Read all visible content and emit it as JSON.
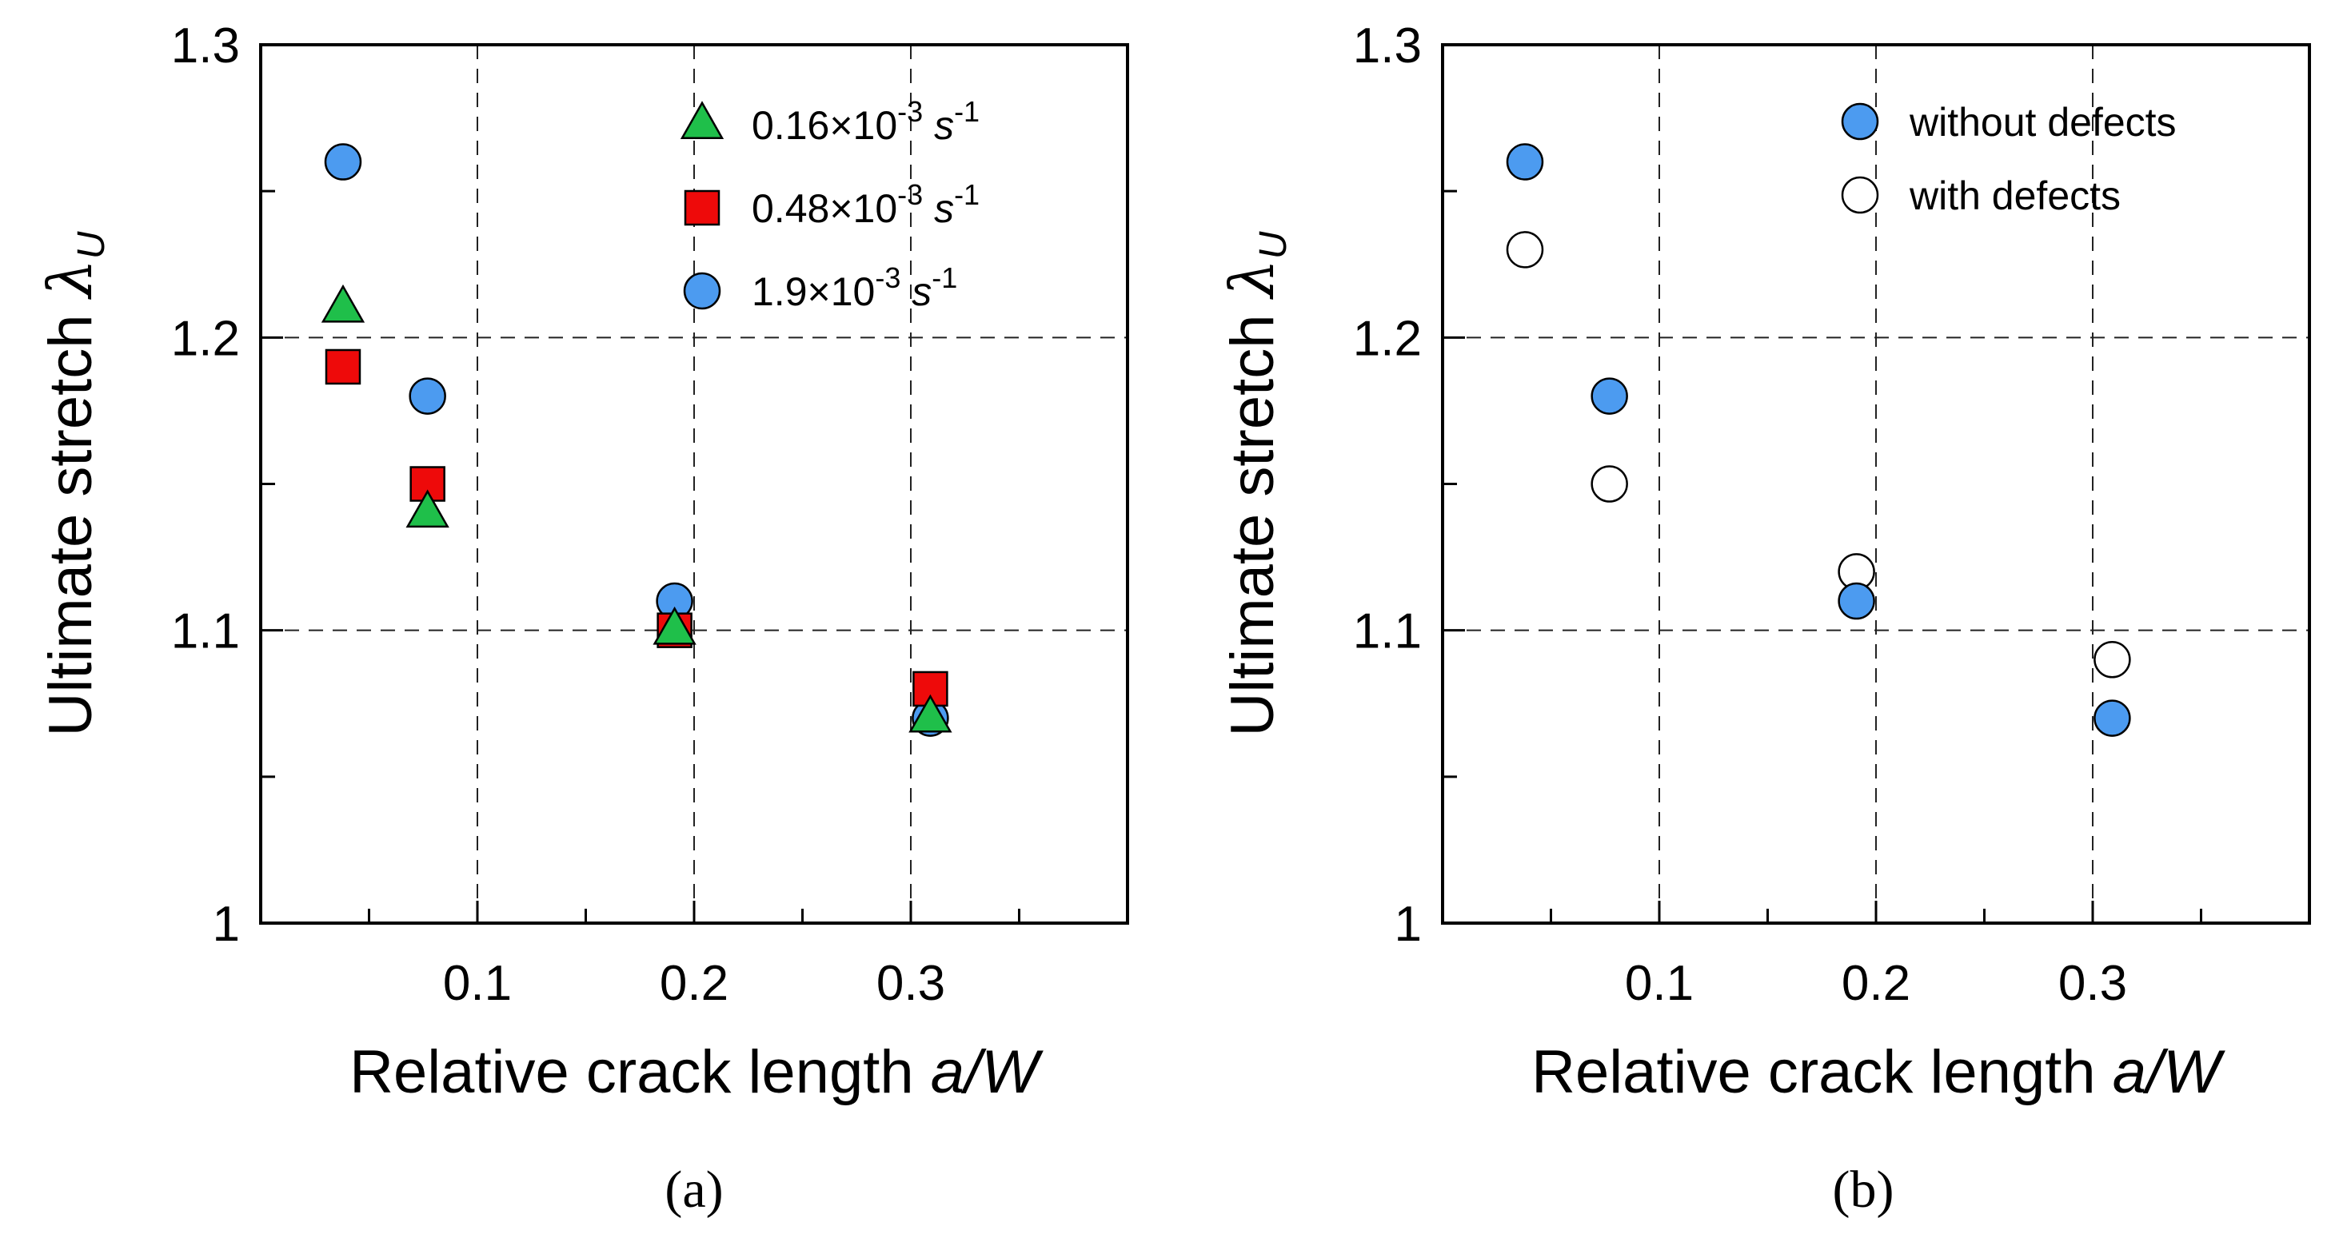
{
  "chart_data": [
    {
      "type": "scatter",
      "panel": "(a)",
      "xlabel": "Relative crack length",
      "xlabel_var": "a/W",
      "ylabel": "Ultimate stretch",
      "ylabel_sym": "λ",
      "ylabel_sub": "U",
      "xlim": [
        0,
        0.4
      ],
      "ylim": [
        1.0,
        1.3
      ],
      "xticks": [
        0.1,
        0.2,
        0.3
      ],
      "xtick_labels": [
        "0.1",
        "0.2",
        "0.3"
      ],
      "yticks": [
        1.0,
        1.1,
        1.2,
        1.3
      ],
      "ytick_labels": [
        "1",
        "1.1",
        "1.2",
        "1.3"
      ],
      "grid": true,
      "legend_position": "top-right",
      "series": [
        {
          "name": "0.16×10-3 s-1",
          "label_main": "0.16×10",
          "label_exp": "-3",
          "label_unit": "s",
          "label_unit_exp": "-1",
          "marker": "triangle",
          "color": "#1fbf4a",
          "x": [
            0.038,
            0.077,
            0.191,
            0.309
          ],
          "y": [
            1.21,
            1.14,
            1.1,
            1.07
          ]
        },
        {
          "name": "0.48×10-3 s-1",
          "label_main": "0.48×10",
          "label_exp": "-3",
          "label_unit": "s",
          "label_unit_exp": "-1",
          "marker": "square",
          "color": "#ee0a0a",
          "x": [
            0.038,
            0.077,
            0.191,
            0.309
          ],
          "y": [
            1.19,
            1.15,
            1.1,
            1.08
          ]
        },
        {
          "name": "1.9×10-3 s-1",
          "label_main": "1.9×10",
          "label_exp": "-3",
          "label_unit": "s",
          "label_unit_exp": "-1",
          "marker": "circle",
          "color": "#4c9bf0",
          "x": [
            0.038,
            0.077,
            0.191,
            0.309
          ],
          "y": [
            1.26,
            1.18,
            1.11,
            1.07
          ]
        }
      ]
    },
    {
      "type": "scatter",
      "panel": "(b)",
      "xlabel": "Relative crack length",
      "xlabel_var": "a/W",
      "ylabel": "Ultimate stretch",
      "ylabel_sym": "λ",
      "ylabel_sub": "U",
      "xlim": [
        0,
        0.4
      ],
      "ylim": [
        1.0,
        1.3
      ],
      "xticks": [
        0.1,
        0.2,
        0.3
      ],
      "xtick_labels": [
        "0.1",
        "0.2",
        "0.3"
      ],
      "yticks": [
        1.0,
        1.1,
        1.2,
        1.3
      ],
      "ytick_labels": [
        "1",
        "1.1",
        "1.2",
        "1.3"
      ],
      "grid": true,
      "legend_position": "top-right",
      "series": [
        {
          "name": "without defects",
          "label_main": "without defects",
          "marker": "circle",
          "color": "#4c9bf0",
          "x": [
            0.038,
            0.077,
            0.191,
            0.309
          ],
          "y": [
            1.26,
            1.18,
            1.11,
            1.07
          ]
        },
        {
          "name": "with defects",
          "label_main": "with defects",
          "marker": "circle",
          "color": "#ffffff",
          "x": [
            0.038,
            0.077,
            0.191,
            0.309
          ],
          "y": [
            1.23,
            1.15,
            1.12,
            1.09
          ]
        }
      ]
    }
  ]
}
